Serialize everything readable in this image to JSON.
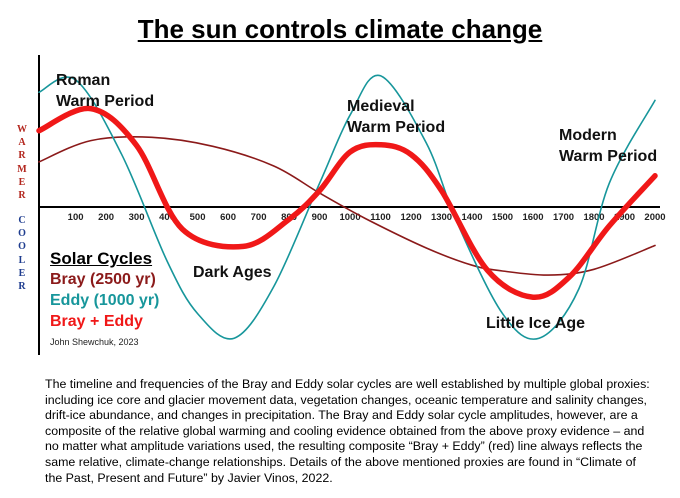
{
  "title": "The sun controls climate change",
  "axis_side_labels": {
    "warmer": "WARMER",
    "cooler": "COOLER"
  },
  "annotations": {
    "roman": [
      "Roman",
      "Warm Period"
    ],
    "medieval": [
      "Medieval",
      "Warm Period"
    ],
    "modern": [
      "Modern",
      "Warm Period"
    ],
    "dark_ages": "Dark Ages",
    "little_ice_age": "Little Ice Age"
  },
  "legend": {
    "title": "Solar Cycles",
    "items": [
      {
        "label": "Bray  (2500 yr)",
        "color": "#8b1a1a"
      },
      {
        "label": "Eddy (1000 yr)",
        "color": "#17969b"
      },
      {
        "label": "Bray + Eddy",
        "color": "#f01818"
      }
    ]
  },
  "credit": "John Shewchuk, 2023",
  "caption": "The timeline and frequencies of the Bray and Eddy solar cycles are well established by multiple global proxies: including ice core and glacier movement data, vegetation changes, oceanic temperature and salinity changes, drift-ice abundance, and changes in precipitation.  The Bray and Eddy solar cycle amplitudes, however, are a composite of the relative global warming and cooling evidence obtained from the above proxy evidence – and no matter what amplitude variations used, the resulting composite “Bray + Eddy” (red) line always reflects the same relative, climate-change relationships.  Details of the above mentioned proxies are found in “Climate of the Past, Present and Future” by Javier Vinos, 2022.",
  "chart_data": {
    "type": "line",
    "title": "The sun controls climate change",
    "x_ticks": [
      100,
      200,
      300,
      400,
      500,
      600,
      700,
      800,
      900,
      1000,
      1100,
      1200,
      1300,
      1400,
      1500,
      1600,
      1700,
      1800,
      1900,
      2000
    ],
    "xlim": [
      -20,
      2000
    ],
    "ylim": [
      -1.65,
      1.65
    ],
    "series": [
      {
        "name": "Bray  (2500 yr)",
        "color": "#8b1a1a",
        "x": [
          -20,
          150,
          350,
          550,
          750,
          900,
          1050,
          1250,
          1400,
          1500,
          1650,
          1800,
          2000
        ],
        "y": [
          0.55,
          0.81,
          0.85,
          0.74,
          0.5,
          0.17,
          -0.14,
          -0.5,
          -0.71,
          -0.78,
          -0.83,
          -0.76,
          -0.47
        ]
      },
      {
        "name": "Eddy (1000 yr)",
        "color": "#17969b",
        "x": [
          -20,
          100,
          250,
          400,
          500,
          620,
          750,
          900,
          1000,
          1100,
          1250,
          1350,
          1500,
          1620,
          1750,
          1850,
          2000
        ],
        "y": [
          1.4,
          1.55,
          0.65,
          -0.66,
          -1.3,
          -1.6,
          -0.97,
          0.29,
          1.12,
          1.6,
          0.78,
          -0.18,
          -1.3,
          -1.6,
          -1.0,
          0.29,
          1.3
        ]
      },
      {
        "name": "Bray + Eddy",
        "color": "#f01818",
        "x": [
          -20,
          150,
          300,
          450,
          650,
          800,
          900,
          1000,
          1100,
          1200,
          1300,
          1450,
          1600,
          1720,
          1850,
          2000
        ],
        "y": [
          0.93,
          1.2,
          0.75,
          -0.27,
          -0.48,
          -0.15,
          0.2,
          0.67,
          0.76,
          0.64,
          0.2,
          -0.77,
          -1.1,
          -0.85,
          -0.23,
          0.38
        ]
      }
    ]
  }
}
